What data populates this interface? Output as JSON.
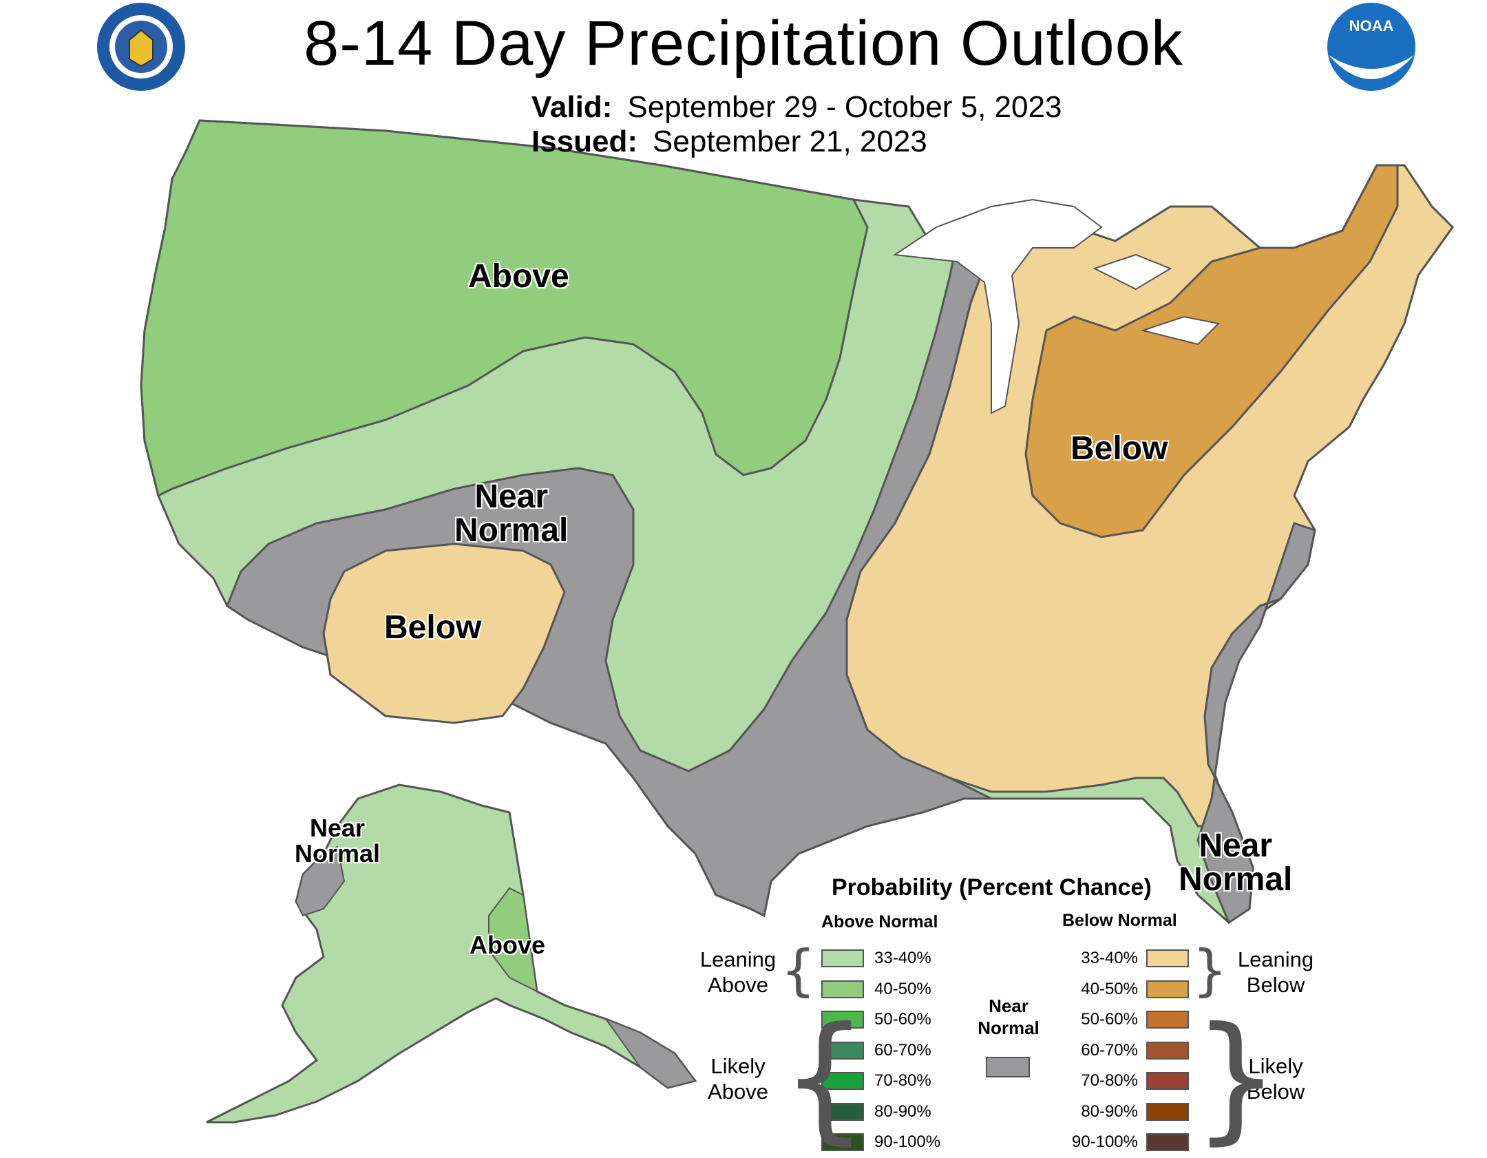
{
  "header": {
    "title": "8-14 Day Precipitation Outlook",
    "valid_label": "Valid:",
    "valid_value": "September 29 - October 5, 2023",
    "issued_label": "Issued:",
    "issued_value": "September 21, 2023"
  },
  "logos": {
    "left": "department-of-commerce-seal",
    "right": "noaa-logo",
    "right_text": "NOAA"
  },
  "map": {
    "labels": {
      "north_above": "Above",
      "mid_near_normal": [
        "Near",
        "Normal"
      ],
      "sw_below": "Below",
      "ohio_below": "Below",
      "florida_near_normal": [
        "Near",
        "Normal"
      ],
      "alaska_near_normal": [
        "Near",
        "Normal"
      ],
      "alaska_above": "Above"
    },
    "colors": {
      "leaning_above": "#b2dba8",
      "above_40_50": "#92cd7e",
      "near_normal": "#9a9a9c",
      "leaning_below": "#f0d498",
      "below_40_50": "#d9a04a",
      "water_white": "#ffffff",
      "border": "#555555"
    }
  },
  "legend": {
    "title": "Probability (Percent Chance)",
    "above_header": "Above Normal",
    "below_header": "Below Normal",
    "near_normal_label": [
      "Near",
      "Normal"
    ],
    "near_normal_color": "#9a9a9c",
    "leaning_above": [
      "Leaning",
      "Above"
    ],
    "likely_above": [
      "Likely",
      "Above"
    ],
    "leaning_below": [
      "Leaning",
      "Below"
    ],
    "likely_below": [
      "Likely",
      "Below"
    ],
    "above": [
      {
        "range": "33-40%",
        "color": "#b2dba8"
      },
      {
        "range": "40-50%",
        "color": "#92cd7e"
      },
      {
        "range": "50-60%",
        "color": "#4cb849"
      },
      {
        "range": "60-70%",
        "color": "#3a8a61"
      },
      {
        "range": "70-80%",
        "color": "#18a23e"
      },
      {
        "range": "80-90%",
        "color": "#275f3e"
      },
      {
        "range": "90-100%",
        "color": "#2b5320"
      }
    ],
    "below": [
      {
        "range": "33-40%",
        "color": "#f0d498"
      },
      {
        "range": "40-50%",
        "color": "#d9a04a"
      },
      {
        "range": "50-60%",
        "color": "#c3722f"
      },
      {
        "range": "60-70%",
        "color": "#a5532e"
      },
      {
        "range": "70-80%",
        "color": "#994235"
      },
      {
        "range": "80-90%",
        "color": "#8a4206"
      },
      {
        "range": "90-100%",
        "color": "#5a3634"
      }
    ]
  }
}
